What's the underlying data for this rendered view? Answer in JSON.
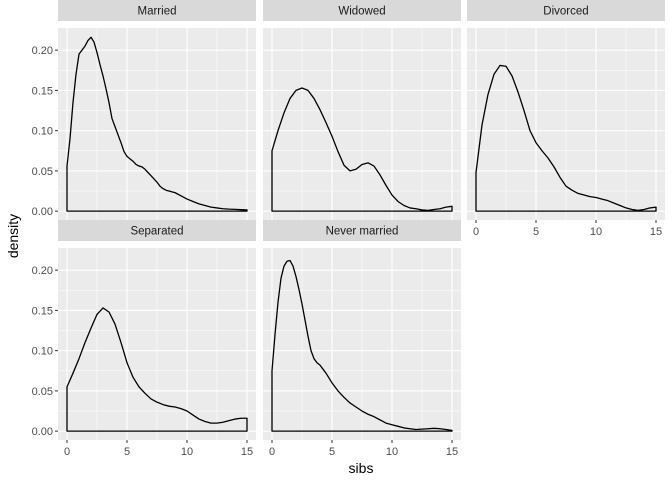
{
  "chart_data": {
    "type": "area",
    "facet_layout": "3 columns x 2 rows",
    "xlabel": "sibs",
    "ylabel": "density",
    "xlim": [
      -0.75,
      15.75
    ],
    "ylim": [
      -0.011,
      0.2275
    ],
    "x_ticks": [
      0,
      5,
      10,
      15
    ],
    "x_tick_labels": [
      "0",
      "5",
      "10",
      "15"
    ],
    "y_ticks": [
      0,
      0.05,
      0.1,
      0.15,
      0.2
    ],
    "y_tick_labels": [
      "0.00",
      "0.05",
      "0.10",
      "0.15",
      "0.20"
    ],
    "grid": true,
    "legend": "none",
    "line_color": "#000000",
    "panel_background": "#ebebeb",
    "strip_background": "#d9d9d9",
    "panels": [
      {
        "label": "Married",
        "x": [
          0,
          0.25,
          0.5,
          0.75,
          1,
          1.25,
          1.5,
          1.75,
          2,
          2.25,
          2.5,
          2.75,
          3,
          3.25,
          3.5,
          3.75,
          4,
          4.25,
          4.5,
          4.75,
          5,
          5.25,
          5.5,
          5.75,
          6,
          6.25,
          6.5,
          6.75,
          7,
          7.25,
          7.5,
          7.75,
          8,
          8.25,
          8.5,
          8.75,
          9,
          9.25,
          9.5,
          9.75,
          10,
          10.5,
          11,
          11.5,
          12,
          12.5,
          13,
          13.5,
          14,
          14.5,
          15
        ],
        "density": [
          0.056,
          0.09,
          0.135,
          0.17,
          0.195,
          0.2,
          0.205,
          0.212,
          0.216,
          0.21,
          0.197,
          0.182,
          0.168,
          0.152,
          0.135,
          0.115,
          0.105,
          0.095,
          0.085,
          0.074,
          0.068,
          0.065,
          0.062,
          0.058,
          0.056,
          0.055,
          0.052,
          0.048,
          0.044,
          0.04,
          0.036,
          0.031,
          0.028,
          0.026,
          0.025,
          0.024,
          0.023,
          0.021,
          0.019,
          0.017,
          0.015,
          0.012,
          0.009,
          0.007,
          0.005,
          0.004,
          0.003,
          0.0025,
          0.0022,
          0.0018,
          0.0015
        ]
      },
      {
        "label": "Widowed",
        "x": [
          0,
          0.5,
          1,
          1.5,
          2,
          2.5,
          3,
          3.5,
          4,
          4.5,
          5,
          5.5,
          6,
          6.5,
          7,
          7.5,
          8,
          8.5,
          9,
          9.5,
          10,
          10.5,
          11,
          11.5,
          12,
          12.5,
          13,
          13.5,
          14,
          14.5,
          15
        ],
        "density": [
          0.075,
          0.1,
          0.122,
          0.14,
          0.15,
          0.153,
          0.15,
          0.14,
          0.126,
          0.11,
          0.093,
          0.074,
          0.057,
          0.05,
          0.052,
          0.058,
          0.06,
          0.056,
          0.045,
          0.032,
          0.02,
          0.012,
          0.007,
          0.004,
          0.003,
          0.0015,
          0.001,
          0.002,
          0.003,
          0.005,
          0.006
        ]
      },
      {
        "label": "Divorced",
        "x": [
          0,
          0.5,
          1,
          1.5,
          2,
          2.5,
          3,
          3.5,
          4,
          4.5,
          5,
          5.5,
          6,
          6.5,
          7,
          7.5,
          8,
          8.5,
          9,
          9.5,
          10,
          10.5,
          11,
          11.5,
          12,
          12.5,
          13,
          13.5,
          14,
          14.5,
          15
        ],
        "density": [
          0.048,
          0.107,
          0.145,
          0.17,
          0.181,
          0.18,
          0.168,
          0.148,
          0.125,
          0.1,
          0.085,
          0.075,
          0.066,
          0.055,
          0.042,
          0.031,
          0.026,
          0.022,
          0.02,
          0.018,
          0.017,
          0.015,
          0.013,
          0.01,
          0.007,
          0.004,
          0.002,
          0.001,
          0.002,
          0.004,
          0.005
        ]
      },
      {
        "label": "Separated",
        "x": [
          0,
          0.5,
          1,
          1.5,
          2,
          2.5,
          3,
          3.5,
          4,
          4.5,
          5,
          5.5,
          6,
          6.5,
          7,
          7.5,
          8,
          8.5,
          9,
          9.5,
          10,
          10.5,
          11,
          11.5,
          12,
          12.5,
          13,
          13.5,
          14,
          14.5,
          15
        ],
        "density": [
          0.055,
          0.072,
          0.09,
          0.11,
          0.128,
          0.145,
          0.153,
          0.148,
          0.133,
          0.11,
          0.085,
          0.067,
          0.055,
          0.047,
          0.04,
          0.036,
          0.033,
          0.031,
          0.03,
          0.028,
          0.025,
          0.02,
          0.015,
          0.012,
          0.01,
          0.01,
          0.011,
          0.013,
          0.015,
          0.016,
          0.016
        ]
      },
      {
        "label": "Never married",
        "x": [
          0,
          0.25,
          0.5,
          0.75,
          1,
          1.25,
          1.5,
          1.75,
          2,
          2.25,
          2.5,
          2.75,
          3,
          3.25,
          3.5,
          3.75,
          4,
          4.5,
          5,
          5.5,
          6,
          6.5,
          7,
          7.5,
          8,
          8.5,
          9,
          9.5,
          10,
          10.5,
          11,
          11.5,
          12,
          12.5,
          13,
          13.5,
          14,
          14.5,
          15
        ],
        "density": [
          0.075,
          0.12,
          0.16,
          0.19,
          0.205,
          0.211,
          0.212,
          0.205,
          0.192,
          0.176,
          0.158,
          0.138,
          0.118,
          0.1,
          0.09,
          0.085,
          0.082,
          0.072,
          0.06,
          0.05,
          0.042,
          0.035,
          0.03,
          0.025,
          0.021,
          0.018,
          0.014,
          0.01,
          0.008,
          0.006,
          0.004,
          0.003,
          0.002,
          0.0025,
          0.003,
          0.0035,
          0.003,
          0.002,
          0.001
        ]
      }
    ]
  }
}
